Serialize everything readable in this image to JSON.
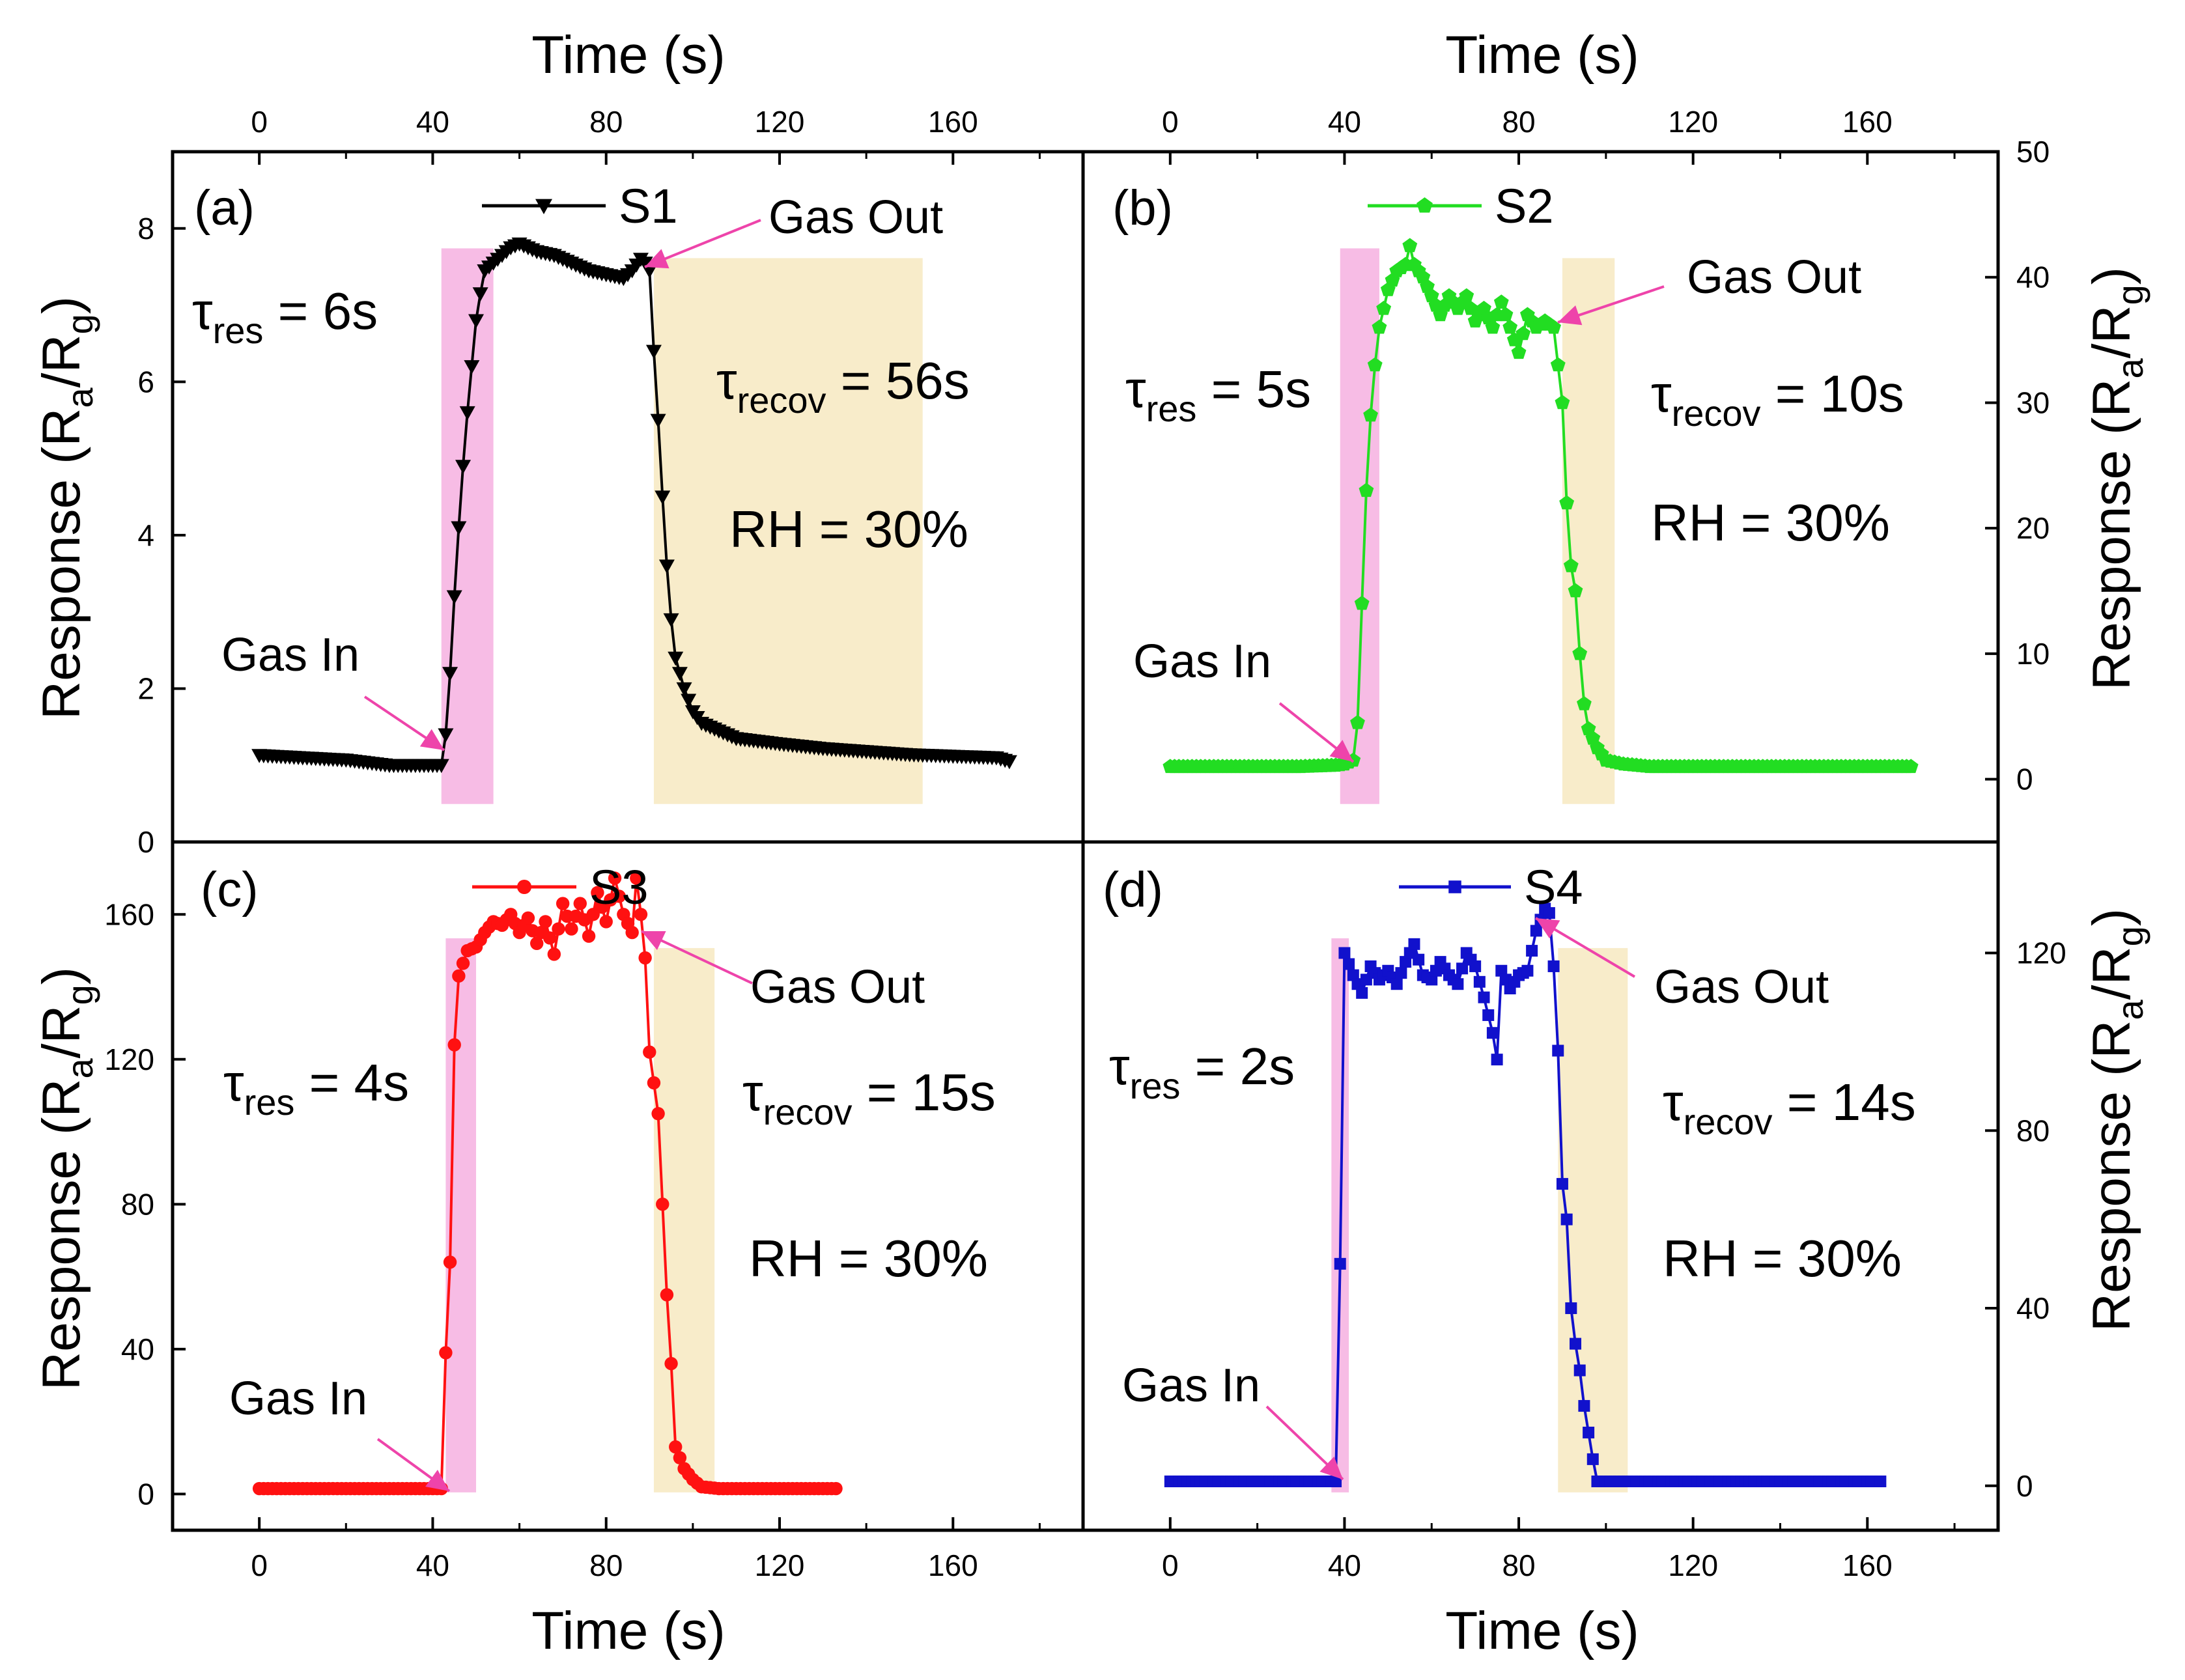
{
  "figure": {
    "xlabel": "Time (s)",
    "ylabel_main": "Response (R",
    "ylabel_sub1": "a",
    "ylabel_mid": "/R",
    "ylabel_sub2": "g",
    "ylabel_close": ")"
  },
  "chart_data": [
    {
      "type": "line",
      "panel": "(a)",
      "series_name": "S1",
      "color": "#000000",
      "marker": "triangle-down",
      "x_ticks": [
        0,
        40,
        80,
        120,
        160
      ],
      "y_ticks": [
        0,
        2,
        4,
        6,
        8
      ],
      "xlim": [
        -20,
        190
      ],
      "ylim": [
        0,
        9
      ],
      "y_axis_side": "left",
      "x_axis_side": "top",
      "response_band": [
        42,
        54
      ],
      "recovery_band": [
        91,
        153
      ],
      "annotations": {
        "gas_in": "Gas In",
        "gas_out": "Gas Out",
        "tau_res_label": "res",
        "tau_res_value": " = 6s",
        "tau_recov_label": "recov",
        "tau_recov_value": " = 56s",
        "rh": "RH = 30%"
      },
      "key_points": [
        [
          0,
          1.13
        ],
        [
          10,
          1.1
        ],
        [
          20,
          1.07
        ],
        [
          30,
          1.0
        ],
        [
          38,
          1.0
        ],
        [
          42,
          1.0
        ],
        [
          43,
          1.4
        ],
        [
          44,
          2.2
        ],
        [
          45,
          3.2
        ],
        [
          46,
          4.1
        ],
        [
          47,
          4.9
        ],
        [
          48,
          5.6
        ],
        [
          49,
          6.2
        ],
        [
          50,
          6.8
        ],
        [
          51,
          7.15
        ],
        [
          52,
          7.45
        ],
        [
          54,
          7.55
        ],
        [
          56,
          7.65
        ],
        [
          58,
          7.75
        ],
        [
          60,
          7.8
        ],
        [
          64,
          7.7
        ],
        [
          68,
          7.65
        ],
        [
          72,
          7.55
        ],
        [
          76,
          7.45
        ],
        [
          80,
          7.4
        ],
        [
          84,
          7.35
        ],
        [
          86,
          7.45
        ],
        [
          88,
          7.6
        ],
        [
          89,
          7.55
        ],
        [
          90,
          7.45
        ],
        [
          91,
          6.4
        ],
        [
          92,
          5.5
        ],
        [
          93,
          4.5
        ],
        [
          94,
          3.6
        ],
        [
          95,
          2.9
        ],
        [
          96,
          2.4
        ],
        [
          98,
          2.0
        ],
        [
          100,
          1.7
        ],
        [
          102,
          1.55
        ],
        [
          106,
          1.45
        ],
        [
          110,
          1.35
        ],
        [
          120,
          1.28
        ],
        [
          130,
          1.22
        ],
        [
          140,
          1.18
        ],
        [
          150,
          1.14
        ],
        [
          160,
          1.12
        ],
        [
          170,
          1.1
        ],
        [
          173,
          1.05
        ]
      ]
    },
    {
      "type": "line",
      "panel": "(b)",
      "series_name": "S2",
      "color": "#22dd22",
      "marker": "pentagon",
      "x_ticks": [
        0,
        40,
        80,
        120,
        160
      ],
      "y_ticks": [
        0,
        10,
        20,
        30,
        40,
        50
      ],
      "xlim": [
        -20,
        190
      ],
      "ylim": [
        -5,
        50
      ],
      "y_axis_side": "right",
      "x_axis_side": "top",
      "response_band": [
        39,
        48
      ],
      "recovery_band": [
        90,
        102
      ],
      "annotations": {
        "gas_in": "Gas In",
        "gas_out": "Gas Out",
        "tau_res_label": "res",
        "tau_res_value": " = 5s",
        "tau_recov_label": "recov",
        "tau_recov_value": " = 10s",
        "rh": "RH = 30%"
      },
      "key_points": [
        [
          0,
          1
        ],
        [
          10,
          1
        ],
        [
          20,
          1
        ],
        [
          30,
          1
        ],
        [
          38,
          1.1
        ],
        [
          40,
          1.2
        ],
        [
          42,
          1.5
        ],
        [
          43,
          4.5
        ],
        [
          44,
          14
        ],
        [
          45,
          23
        ],
        [
          46,
          29
        ],
        [
          47,
          33
        ],
        [
          48,
          36
        ],
        [
          50,
          39
        ],
        [
          52,
          40.5
        ],
        [
          54,
          41
        ],
        [
          55,
          42.5
        ],
        [
          56,
          41
        ],
        [
          58,
          40
        ],
        [
          60,
          38.5
        ],
        [
          62,
          37
        ],
        [
          64,
          38.5
        ],
        [
          66,
          37.5
        ],
        [
          68,
          38.5
        ],
        [
          70,
          36.5
        ],
        [
          72,
          37.5
        ],
        [
          74,
          36
        ],
        [
          76,
          38
        ],
        [
          78,
          36
        ],
        [
          80,
          34
        ],
        [
          82,
          37
        ],
        [
          84,
          36
        ],
        [
          86,
          36.5
        ],
        [
          88,
          36
        ],
        [
          90,
          30
        ],
        [
          91,
          22
        ],
        [
          92,
          17
        ],
        [
          93,
          15
        ],
        [
          94,
          10
        ],
        [
          95,
          6
        ],
        [
          96,
          4
        ],
        [
          98,
          2.5
        ],
        [
          100,
          1.5
        ],
        [
          104,
          1.2
        ],
        [
          110,
          1
        ],
        [
          130,
          1
        ],
        [
          150,
          1
        ],
        [
          170,
          1
        ]
      ]
    },
    {
      "type": "line",
      "panel": "(c)",
      "series_name": "S3",
      "color": "#ff1111",
      "marker": "circle",
      "x_ticks": [
        0,
        40,
        80,
        120,
        160
      ],
      "y_ticks": [
        0,
        40,
        80,
        120,
        160
      ],
      "xlim": [
        -20,
        190
      ],
      "ylim": [
        -10,
        180
      ],
      "y_axis_side": "left",
      "x_axis_side": "bottom",
      "response_band": [
        43,
        50
      ],
      "recovery_band": [
        91,
        105
      ],
      "annotations": {
        "gas_in": "Gas In",
        "gas_out": "Gas Out",
        "tau_res_label": "res",
        "tau_res_value": " = 4s",
        "tau_recov_label": "recov",
        "tau_recov_value": " = 15s",
        "rh": "RH = 30%"
      },
      "key_points": [
        [
          0,
          1.5
        ],
        [
          10,
          1.5
        ],
        [
          20,
          1.5
        ],
        [
          30,
          1.5
        ],
        [
          40,
          1.5
        ],
        [
          42,
          1.5
        ],
        [
          43,
          39
        ],
        [
          44,
          64
        ],
        [
          45,
          124
        ],
        [
          46,
          143
        ],
        [
          48,
          150
        ],
        [
          50,
          151
        ],
        [
          52,
          155
        ],
        [
          54,
          158
        ],
        [
          56,
          157
        ],
        [
          58,
          160
        ],
        [
          60,
          155
        ],
        [
          62,
          159
        ],
        [
          64,
          152
        ],
        [
          66,
          158
        ],
        [
          68,
          149
        ],
        [
          70,
          163
        ],
        [
          72,
          156
        ],
        [
          74,
          163
        ],
        [
          76,
          154
        ],
        [
          78,
          166
        ],
        [
          80,
          158
        ],
        [
          82,
          170
        ],
        [
          84,
          160
        ],
        [
          86,
          155
        ],
        [
          87,
          170
        ],
        [
          88,
          160
        ],
        [
          89,
          148
        ],
        [
          90,
          122
        ],
        [
          92,
          105
        ],
        [
          93,
          80
        ],
        [
          94,
          55
        ],
        [
          95,
          36
        ],
        [
          96,
          13
        ],
        [
          97,
          10
        ],
        [
          98,
          7
        ],
        [
          100,
          4
        ],
        [
          102,
          2
        ],
        [
          106,
          1.5
        ],
        [
          120,
          1.5
        ],
        [
          133,
          1.5
        ]
      ]
    },
    {
      "type": "line",
      "panel": "(d)",
      "series_name": "S4",
      "color": "#1111cc",
      "marker": "square",
      "x_ticks": [
        0,
        40,
        80,
        120,
        160
      ],
      "y_ticks": [
        0,
        40,
        80,
        120
      ],
      "xlim": [
        -20,
        190
      ],
      "ylim": [
        -10,
        145
      ],
      "y_axis_side": "right",
      "x_axis_side": "bottom",
      "response_band": [
        37,
        41
      ],
      "recovery_band": [
        89,
        105
      ],
      "annotations": {
        "gas_in": "Gas In",
        "gas_out": "Gas Out",
        "tau_res_label": "res",
        "tau_res_value": " = 2s",
        "tau_recov_label": "recov",
        "tau_recov_value": " = 14s",
        "rh": "RH = 30%"
      },
      "key_points": [
        [
          0,
          1
        ],
        [
          10,
          1
        ],
        [
          20,
          1
        ],
        [
          30,
          1
        ],
        [
          38,
          1
        ],
        [
          39,
          50
        ],
        [
          40,
          120
        ],
        [
          42,
          115
        ],
        [
          44,
          111
        ],
        [
          46,
          117
        ],
        [
          48,
          114
        ],
        [
          50,
          116
        ],
        [
          52,
          113
        ],
        [
          54,
          118
        ],
        [
          56,
          122
        ],
        [
          58,
          115
        ],
        [
          60,
          114
        ],
        [
          62,
          118
        ],
        [
          64,
          115
        ],
        [
          66,
          113
        ],
        [
          68,
          120
        ],
        [
          70,
          117
        ],
        [
          72,
          110
        ],
        [
          74,
          102
        ],
        [
          75,
          96
        ],
        [
          76,
          116
        ],
        [
          78,
          112
        ],
        [
          80,
          115
        ],
        [
          82,
          116
        ],
        [
          84,
          125
        ],
        [
          86,
          130
        ],
        [
          87,
          129
        ],
        [
          88,
          117
        ],
        [
          89,
          98
        ],
        [
          90,
          68
        ],
        [
          91,
          60
        ],
        [
          92,
          40
        ],
        [
          93,
          32
        ],
        [
          94,
          26
        ],
        [
          95,
          18
        ],
        [
          96,
          12
        ],
        [
          97,
          6
        ],
        [
          98,
          1
        ],
        [
          105,
          1
        ],
        [
          120,
          1
        ],
        [
          140,
          1
        ],
        [
          163,
          1
        ]
      ]
    }
  ]
}
